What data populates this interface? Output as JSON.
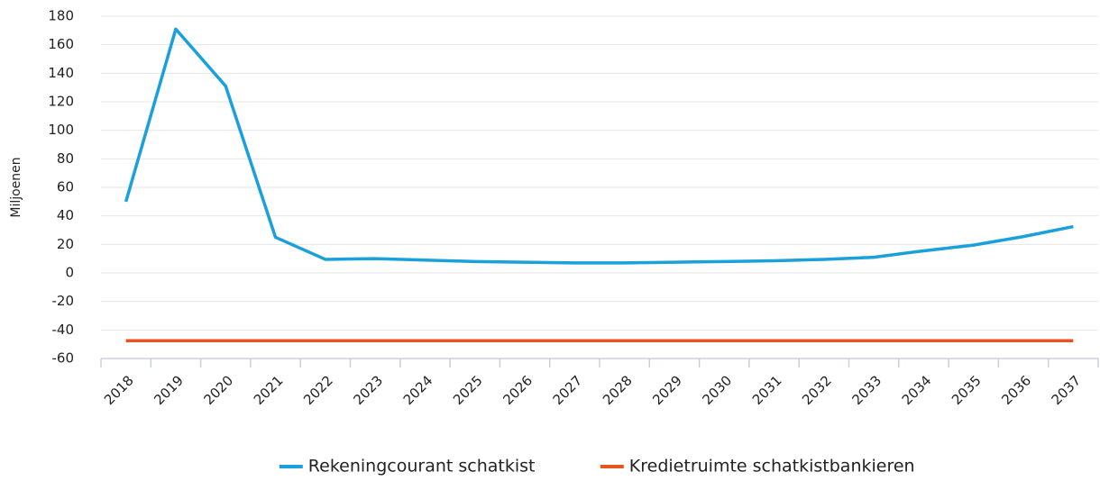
{
  "chart_data": {
    "type": "line",
    "y_label": "Miljoenen",
    "categories": [
      "2018",
      "2019",
      "2020",
      "2021",
      "2022",
      "2023",
      "2024",
      "2025",
      "2026",
      "2027",
      "2028",
      "2029",
      "2030",
      "2031",
      "2032",
      "2033",
      "2034",
      "2035",
      "2036",
      "2037"
    ],
    "series": [
      {
        "name": "Rekeningcourant schatkist",
        "color": "#1aa0db",
        "values": [
          50,
          171,
          131,
          25,
          9.5,
          10,
          9,
          8,
          7.5,
          7,
          7,
          7.5,
          8,
          8.5,
          9.5,
          11,
          15.5,
          19.5,
          25.5,
          32.5
        ]
      },
      {
        "name": "Kredietruimte schatkistbankieren",
        "color": "#e8541e",
        "values": [
          -47.5,
          -47.5,
          -47.5,
          -47.5,
          -47.5,
          -47.5,
          -47.5,
          -47.5,
          -47.5,
          -47.5,
          -47.5,
          -47.5,
          -47.5,
          -47.5,
          -47.5,
          -47.5,
          -47.5,
          -47.5,
          -47.5,
          -47.5
        ]
      }
    ],
    "ylim": [
      -60,
      180
    ],
    "yticks": [
      -60,
      -40,
      -20,
      0,
      20,
      40,
      60,
      80,
      100,
      120,
      140,
      160,
      180
    ],
    "grid": true,
    "legend": "bottom"
  }
}
